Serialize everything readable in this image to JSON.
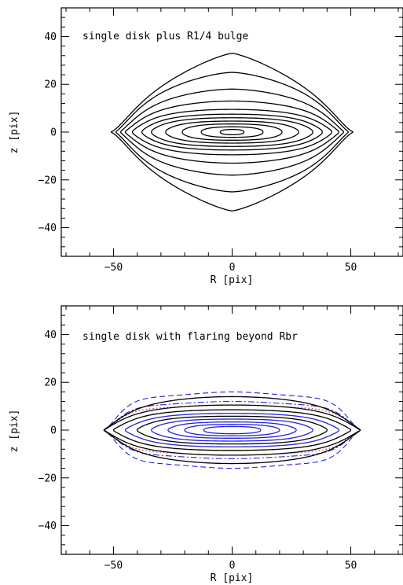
{
  "chart_data": [
    {
      "type": "line",
      "title": "single disk plus R1/4 bulge",
      "xlabel": "R [pix]",
      "ylabel": "z [pix]",
      "xlim": [
        -72,
        72
      ],
      "ylim": [
        -52,
        52
      ],
      "xticks_major": [
        -50,
        0,
        50
      ],
      "yticks_major": [
        -40,
        -20,
        0,
        20,
        40
      ],
      "grid": false,
      "legend": "none",
      "contours": [
        {
          "name": "",
          "style": "solid",
          "color": "#000000",
          "a": 51,
          "b": 33,
          "n": 1.55,
          "pinch": 0.8
        },
        {
          "name": "",
          "style": "solid",
          "color": "#000000",
          "a": 49,
          "b": 25,
          "n": 1.3,
          "pinch": 0.75
        },
        {
          "name": "",
          "style": "solid",
          "color": "#000000",
          "a": 47,
          "b": 18,
          "n": 1.15,
          "pinch": 0.7
        },
        {
          "name": "",
          "style": "solid",
          "color": "#000000",
          "a": 45,
          "b": 13,
          "n": 1.05,
          "pinch": 0.65
        },
        {
          "name": "",
          "style": "solid",
          "color": "#000000",
          "a": 42,
          "b": 9.5,
          "n": 0.95,
          "pinch": 0.55
        },
        {
          "name": "",
          "style": "solid",
          "color": "#000000",
          "a": 38,
          "b": 7.5,
          "n": 0.9,
          "pinch": 0.45
        },
        {
          "name": "",
          "style": "solid",
          "color": "#000000",
          "a": 34,
          "b": 6,
          "n": 0.88,
          "pinch": 0.35
        },
        {
          "name": "",
          "style": "solid",
          "color": "#000000",
          "a": 28,
          "b": 4.6,
          "n": 0.86,
          "pinch": 0.25
        },
        {
          "name": "",
          "style": "solid",
          "color": "#000000",
          "a": 21,
          "b": 3.4,
          "n": 0.85,
          "pinch": 0.15
        },
        {
          "name": "",
          "style": "solid",
          "color": "#000000",
          "a": 13,
          "b": 2.2,
          "n": 0.85,
          "pinch": 0.05
        },
        {
          "name": "",
          "style": "solid",
          "color": "#000000",
          "a": 5,
          "b": 1.1,
          "n": 0.85,
          "pinch": 0
        }
      ]
    },
    {
      "type": "line",
      "title": "single disk with flaring beyond Rbr",
      "xlabel": "R [pix]",
      "ylabel": "z [pix]",
      "xlim": [
        -72,
        72
      ],
      "ylim": [
        -52,
        52
      ],
      "xticks_major": [
        -50,
        0,
        50
      ],
      "yticks_major": [
        -40,
        -20,
        0,
        20,
        40
      ],
      "grid": false,
      "legend": "none",
      "contours": [
        {
          "name": "",
          "style": "dashed",
          "color": "#2222dd",
          "a": 54,
          "b": 16,
          "n": 1.1,
          "pinch": 0.9,
          "flare": 0.55
        },
        {
          "name": "",
          "style": "dashdot",
          "color": "#2222dd",
          "a": 54,
          "b": 12,
          "n": 1.05,
          "pinch": 0.9,
          "flare": 0.45
        },
        {
          "name": "",
          "style": "dotted",
          "color": "#cc2222",
          "a": 54,
          "b": 10.5,
          "n": 1.0,
          "pinch": 0.85,
          "flare": 0.35
        },
        {
          "name": "",
          "style": "solid",
          "color": "#000000",
          "a": 54,
          "b": 14,
          "n": 1.0,
          "pinch": 0.8,
          "flare": 0
        },
        {
          "name": "",
          "style": "solid",
          "color": "#000000",
          "a": 54,
          "b": 10.5,
          "n": 0.95,
          "pinch": 0.8,
          "flare": 0
        },
        {
          "name": "",
          "style": "solid",
          "color": "#000000",
          "a": 50,
          "b": 8.5,
          "n": 0.9,
          "pinch": 0.7,
          "flare": 0
        },
        {
          "name": "",
          "style": "solid",
          "color": "#2222dd",
          "a": 45,
          "b": 7,
          "n": 0.88,
          "pinch": 0.6,
          "flare": 0
        },
        {
          "name": "",
          "style": "solid",
          "color": "#000000",
          "a": 40,
          "b": 5.8,
          "n": 0.86,
          "pinch": 0.5,
          "flare": 0
        },
        {
          "name": "",
          "style": "solid",
          "color": "#2222dd",
          "a": 34,
          "b": 4.6,
          "n": 0.85,
          "pinch": 0.4,
          "flare": 0
        },
        {
          "name": "",
          "style": "solid",
          "color": "#2222dd",
          "a": 27,
          "b": 3.4,
          "n": 0.85,
          "pinch": 0.3,
          "flare": 0
        },
        {
          "name": "",
          "style": "solid",
          "color": "#2222dd",
          "a": 20,
          "b": 2.4,
          "n": 0.85,
          "pinch": 0.15,
          "flare": 0
        },
        {
          "name": "",
          "style": "solid",
          "color": "#2222dd",
          "a": 12,
          "b": 1.5,
          "n": 0.85,
          "pinch": 0,
          "flare": 0
        }
      ]
    }
  ]
}
